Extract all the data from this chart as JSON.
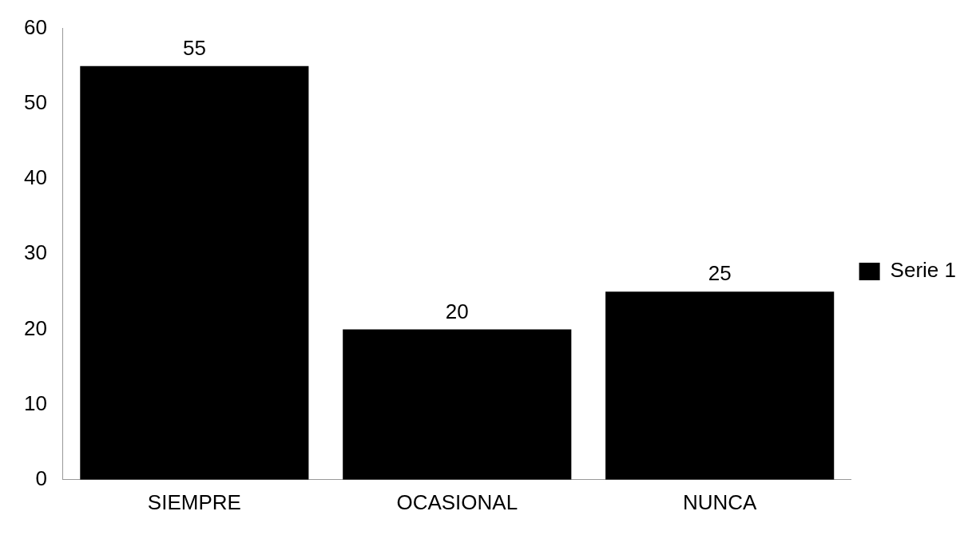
{
  "chart_data": {
    "type": "bar",
    "categories": [
      "SIEMPRE",
      "OCASIONAL",
      "NUNCA"
    ],
    "series": [
      {
        "name": "Serie 1",
        "color": "#000000",
        "values": [
          55,
          20,
          25
        ]
      }
    ],
    "ylim": [
      0,
      60
    ],
    "yticks": [
      0,
      10,
      20,
      30,
      40,
      50,
      60
    ],
    "grid": false,
    "legend": "right",
    "data_labels": true
  }
}
